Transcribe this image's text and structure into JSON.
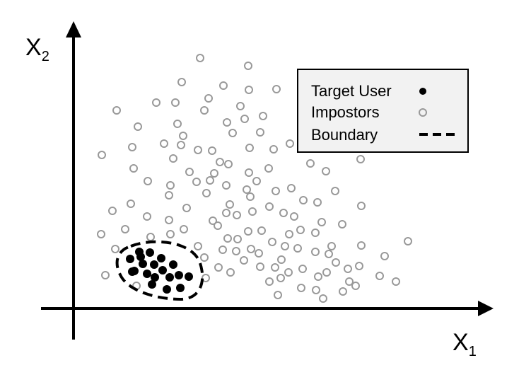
{
  "axes": {
    "x_label": "X",
    "x_subscript": "1",
    "y_label": "X",
    "y_subscript": "2"
  },
  "legend": {
    "target": "Target User",
    "impostors": "Impostors",
    "boundary": "Boundary"
  },
  "colors": {
    "target": "#000000",
    "impostor": "#999999",
    "axis": "#000000"
  },
  "impostor_points": [
    [
      283,
      82
    ],
    [
      351,
      93
    ],
    [
      257,
      116
    ],
    [
      316,
      121
    ],
    [
      352,
      127
    ],
    [
      391,
      126
    ],
    [
      165,
      156
    ],
    [
      221,
      145
    ],
    [
      248,
      145
    ],
    [
      295,
      139
    ],
    [
      289,
      156
    ],
    [
      340,
      150
    ],
    [
      372,
      164
    ],
    [
      195,
      179
    ],
    [
      251,
      175
    ],
    [
      321,
      173
    ],
    [
      346,
      168
    ],
    [
      259,
      192
    ],
    [
      232,
      203
    ],
    [
      329,
      188
    ],
    [
      368,
      187
    ],
    [
      144,
      219
    ],
    [
      187,
      208
    ],
    [
      256,
      205
    ],
    [
      280,
      212
    ],
    [
      300,
      213
    ],
    [
      353,
      209
    ],
    [
      387,
      211
    ],
    [
      410,
      203
    ],
    [
      245,
      224
    ],
    [
      311,
      229
    ],
    [
      323,
      232
    ],
    [
      189,
      238
    ],
    [
      268,
      243
    ],
    [
      303,
      245
    ],
    [
      352,
      244
    ],
    [
      380,
      238
    ],
    [
      439,
      231
    ],
    [
      461,
      242
    ],
    [
      510,
      225
    ],
    [
      209,
      256
    ],
    [
      241,
      262
    ],
    [
      278,
      257
    ],
    [
      297,
      255
    ],
    [
      320,
      262
    ],
    [
      349,
      268
    ],
    [
      363,
      256
    ],
    [
      390,
      270
    ],
    [
      412,
      266
    ],
    [
      239,
      276
    ],
    [
      292,
      273
    ],
    [
      354,
      278
    ],
    [
      474,
      270
    ],
    [
      185,
      288
    ],
    [
      264,
      294
    ],
    [
      325,
      289
    ],
    [
      320,
      301
    ],
    [
      335,
      304
    ],
    [
      357,
      299
    ],
    [
      381,
      292
    ],
    [
      401,
      301
    ],
    [
      429,
      283
    ],
    [
      449,
      286
    ],
    [
      511,
      291
    ],
    [
      159,
      298
    ],
    [
      208,
      306
    ],
    [
      239,
      311
    ],
    [
      301,
      312
    ],
    [
      308,
      319
    ],
    [
      416,
      306
    ],
    [
      455,
      314
    ],
    [
      484,
      317
    ],
    [
      143,
      331
    ],
    [
      177,
      324
    ],
    [
      213,
      335
    ],
    [
      241,
      331
    ],
    [
      260,
      324
    ],
    [
      336,
      338
    ],
    [
      322,
      337
    ],
    [
      351,
      327
    ],
    [
      370,
      326
    ],
    [
      409,
      331
    ],
    [
      425,
      325
    ],
    [
      446,
      329
    ],
    [
      385,
      342
    ],
    [
      315,
      353
    ],
    [
      334,
      355
    ],
    [
      355,
      352
    ],
    [
      403,
      348
    ],
    [
      421,
      351
    ],
    [
      469,
      348
    ],
    [
      511,
      347
    ],
    [
      577,
      341
    ],
    [
      163,
      352
    ],
    [
      280,
      348
    ],
    [
      289,
      364
    ],
    [
      345,
      368
    ],
    [
      366,
      358
    ],
    [
      398,
      367
    ],
    [
      446,
      356
    ],
    [
      465,
      359
    ],
    [
      544,
      362
    ],
    [
      389,
      378
    ],
    [
      368,
      377
    ],
    [
      408,
      385
    ],
    [
      397,
      393
    ],
    [
      428,
      380
    ],
    [
      475,
      371
    ],
    [
      492,
      380
    ],
    [
      508,
      376
    ],
    [
      537,
      390
    ],
    [
      560,
      398
    ],
    [
      149,
      389
    ],
    [
      193,
      404
    ],
    [
      309,
      378
    ],
    [
      291,
      393
    ],
    [
      326,
      385
    ],
    [
      381,
      398
    ],
    [
      450,
      391
    ],
    [
      462,
      385
    ],
    [
      494,
      398
    ],
    [
      503,
      404
    ],
    [
      485,
      412
    ],
    [
      393,
      417
    ],
    [
      426,
      407
    ],
    [
      447,
      410
    ],
    [
      457,
      422
    ]
  ],
  "target_points": [
    [
      197,
      356
    ],
    [
      212,
      357
    ],
    [
      184,
      366
    ],
    [
      218,
      374
    ],
    [
      228,
      365
    ],
    [
      190,
      383
    ],
    [
      202,
      373
    ],
    [
      230,
      382
    ],
    [
      245,
      374
    ],
    [
      208,
      387
    ],
    [
      219,
      392
    ],
    [
      240,
      392
    ],
    [
      253,
      389
    ],
    [
      267,
      391
    ],
    [
      187,
      384
    ],
    [
      215,
      402
    ],
    [
      236,
      409
    ],
    [
      255,
      407
    ],
    [
      199,
      363
    ]
  ]
}
